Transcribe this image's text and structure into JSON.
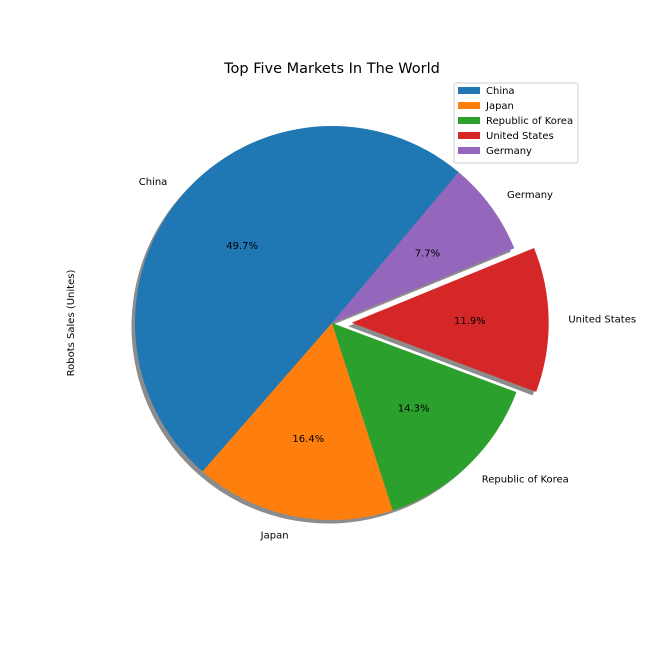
{
  "chart_data": {
    "type": "pie",
    "title": "Top Five Markets In The World",
    "ylabel": "Robots Sales (Unites)",
    "labels": [
      "China",
      "Japan",
      "Republic of Korea",
      "United States",
      "Germany"
    ],
    "values": [
      49.7,
      16.4,
      14.3,
      11.9,
      7.7
    ],
    "pct_labels": [
      "49.7%",
      "16.4%",
      "14.3%",
      "11.9%",
      "7.7%"
    ],
    "colors": [
      "#1f77b4",
      "#ff7f0e",
      "#2ca02c",
      "#d62728",
      "#9467bd"
    ],
    "start_angle_deg": 50,
    "exploded": "United States",
    "shadow": true,
    "legend": {
      "placement": "top-right",
      "entries": [
        "China",
        "Japan",
        "Republic of Korea",
        "United States",
        "Germany"
      ]
    }
  }
}
